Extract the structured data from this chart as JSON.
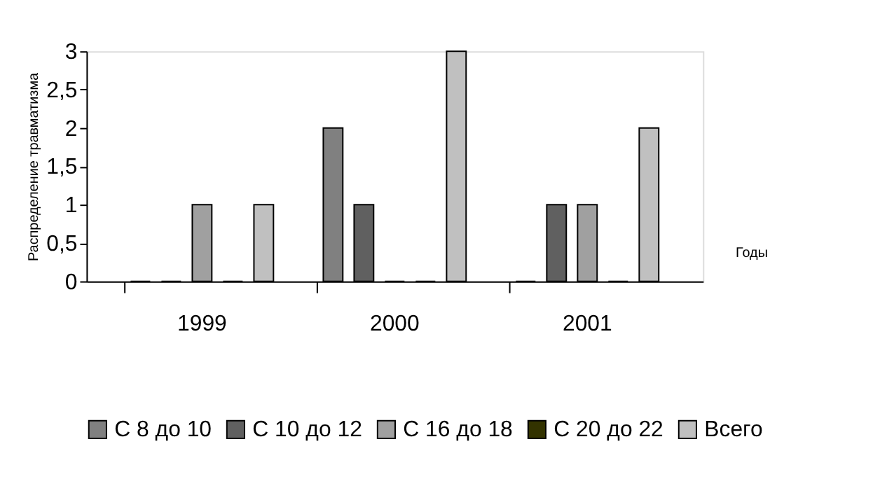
{
  "chart_data": {
    "type": "bar",
    "xlabel": "Годы",
    "ylabel": "Распределение травматизма",
    "categories": [
      "1999",
      "2000",
      "2001"
    ],
    "series": [
      {
        "name": "С 8 до 10",
        "color": "#808080",
        "values": [
          0,
          2,
          0
        ]
      },
      {
        "name": "С 10 до 12",
        "color": "#606060",
        "values": [
          0,
          1,
          1
        ]
      },
      {
        "name": "С 16 до 18",
        "color": "#a0a0a0",
        "values": [
          1,
          0,
          1
        ]
      },
      {
        "name": "С 20 до 22",
        "color": "#333300",
        "values": [
          0,
          0,
          0
        ]
      },
      {
        "name": "Всего",
        "color": "#c0c0c0",
        "values": [
          1,
          3,
          2
        ]
      }
    ],
    "ylim": [
      0,
      3
    ],
    "yticks": [
      0,
      {
        "value": 0.5,
        "label": "0,5"
      },
      1,
      {
        "value": 1.5,
        "label": "1,5"
      },
      2,
      {
        "value": 2.5,
        "label": "2,5"
      },
      3
    ],
    "grid": false,
    "legend": "bottom"
  }
}
